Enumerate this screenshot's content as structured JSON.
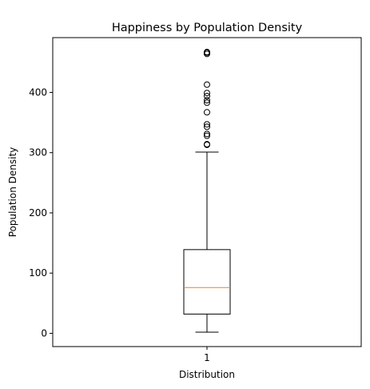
{
  "chart_data": {
    "type": "boxplot",
    "title": "Happiness by Population Density",
    "xlabel": "Distribution",
    "ylabel": "Population Density",
    "categories": [
      "1"
    ],
    "yticks": [
      0,
      100,
      200,
      300,
      400
    ],
    "ylim": [
      -22,
      491
    ],
    "grid": false,
    "box": {
      "whisker_low": 2,
      "q1": 32,
      "median": 76,
      "q3": 139,
      "whisker_high": 301
    },
    "outliers": [
      313,
      314,
      328,
      331,
      343,
      347,
      367,
      383,
      387,
      394,
      399,
      413,
      464,
      466,
      467
    ],
    "colors": {
      "box": "#000000",
      "median": "#ff7f0e",
      "outlier": "#000000"
    }
  }
}
